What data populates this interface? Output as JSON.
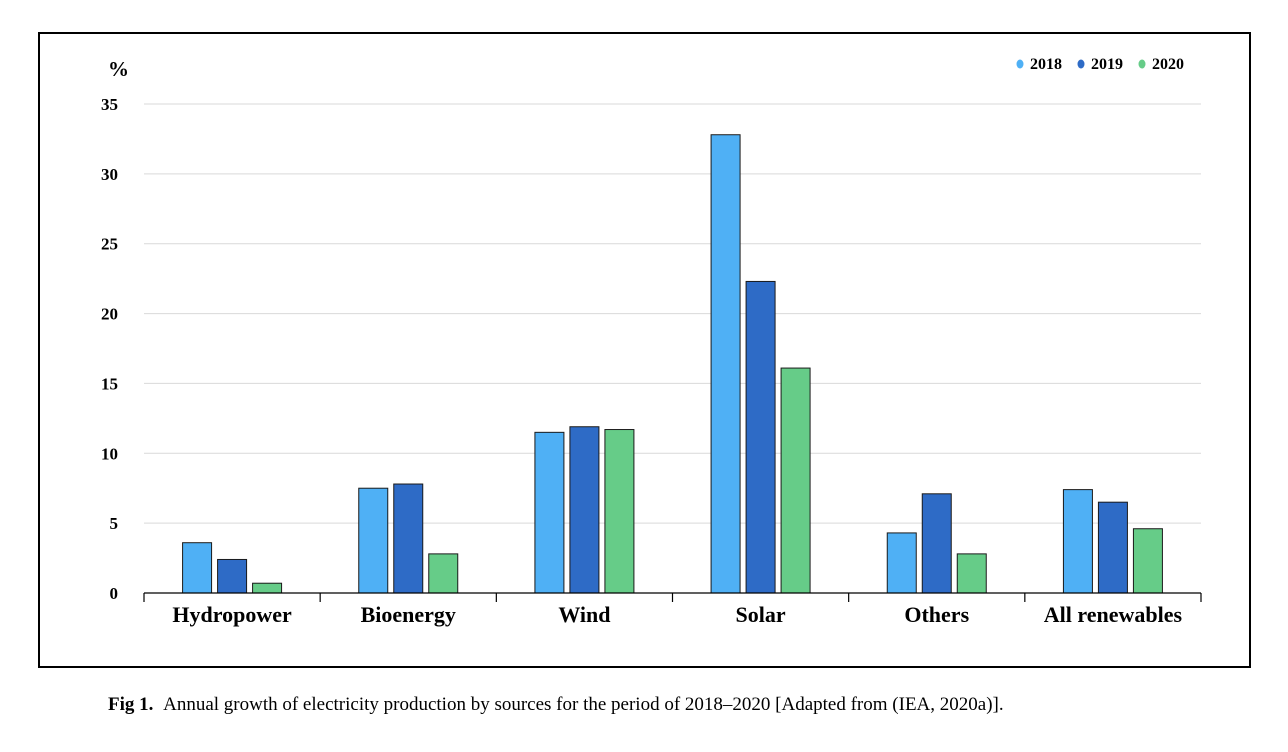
{
  "caption": {
    "label": "Fig 1.",
    "text": "Annual growth of electricity production by sources for the period of 2018–2020 [Adapted from (IEA, 2020a)]."
  },
  "chart_data": {
    "type": "bar",
    "title": "",
    "xlabel": "",
    "ylabel": "%",
    "ylim": [
      0,
      35
    ],
    "yticks": [
      0,
      5,
      10,
      15,
      20,
      25,
      30,
      35
    ],
    "grid": "horizontal",
    "legend_position": "top-right",
    "categories": [
      "Hydropower",
      "Bioenergy",
      "Wind",
      "Solar",
      "Others",
      "All renewables"
    ],
    "series": [
      {
        "name": "2018",
        "color": "#4fb0f5",
        "values": [
          3.6,
          7.5,
          11.5,
          32.8,
          4.3,
          7.4
        ]
      },
      {
        "name": "2019",
        "color": "#2e6bc6",
        "values": [
          2.4,
          7.8,
          11.9,
          22.3,
          7.1,
          6.5
        ]
      },
      {
        "name": "2020",
        "color": "#66cc88",
        "values": [
          0.7,
          2.8,
          11.7,
          16.1,
          2.8,
          4.6
        ]
      }
    ]
  }
}
